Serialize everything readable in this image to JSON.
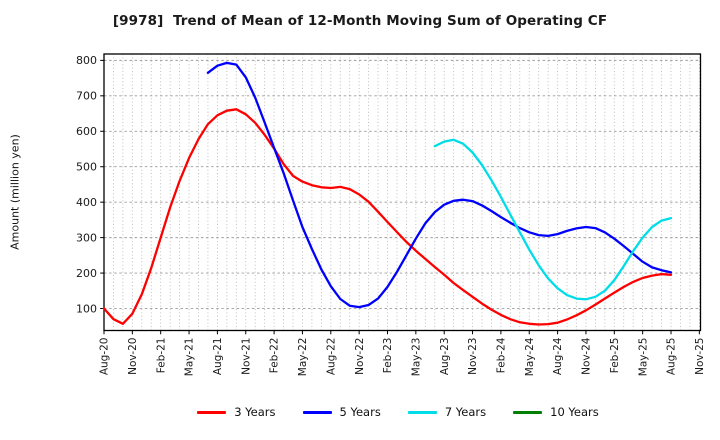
{
  "header": {
    "title": "[9978]  Trend of Mean of 12-Month Moving Sum of Operating CF"
  },
  "chart_data": {
    "type": "line",
    "title": "[9978]  Trend of Mean of 12-Month Moving Sum of Operating CF",
    "xlabel": "",
    "ylabel": "Amount (million yen)",
    "grid": true,
    "legend_position": "bottom",
    "ylim": [
      38,
      818
    ],
    "y_ticks": [
      100,
      200,
      300,
      400,
      500,
      600,
      700,
      800
    ],
    "x_tick_every": 3,
    "x_months": [
      "Aug-20",
      "Sep-20",
      "Oct-20",
      "Nov-20",
      "Dec-20",
      "Jan-21",
      "Feb-21",
      "Mar-21",
      "Apr-21",
      "May-21",
      "Jun-21",
      "Jul-21",
      "Aug-21",
      "Sep-21",
      "Oct-21",
      "Nov-21",
      "Dec-21",
      "Jan-22",
      "Feb-22",
      "Mar-22",
      "Apr-22",
      "May-22",
      "Jun-22",
      "Jul-22",
      "Aug-22",
      "Sep-22",
      "Oct-22",
      "Nov-22",
      "Dec-22",
      "Jan-23",
      "Feb-23",
      "Mar-23",
      "Apr-23",
      "May-23",
      "Jun-23",
      "Jul-23",
      "Aug-23",
      "Sep-23",
      "Oct-23",
      "Nov-23",
      "Dec-23",
      "Jan-24",
      "Feb-24",
      "Mar-24",
      "Apr-24",
      "May-24",
      "Jun-24",
      "Jul-24",
      "Aug-24",
      "Sep-24",
      "Oct-24",
      "Nov-24",
      "Dec-24",
      "Jan-25",
      "Feb-25",
      "Mar-25",
      "Apr-25",
      "May-25",
      "Jun-25",
      "Jul-25",
      "Aug-25",
      "Sep-25",
      "Oct-25",
      "Nov-25"
    ],
    "series": [
      {
        "name": "3 Years",
        "color": "#ff0000",
        "start_index": 0,
        "values": [
          100,
          70,
          57,
          85,
          140,
          215,
          300,
          385,
          460,
          525,
          578,
          620,
          645,
          658,
          662,
          648,
          624,
          590,
          551,
          508,
          474,
          458,
          448,
          442,
          440,
          443,
          437,
          422,
          401,
          373,
          344,
          316,
          288,
          263,
          240,
          217,
          195,
          172,
          152,
          133,
          114,
          97,
          82,
          70,
          61,
          57,
          55,
          56,
          60,
          69,
          81,
          95,
          111,
          128,
          145,
          161,
          175,
          186,
          193,
          197,
          195
        ]
      },
      {
        "name": "5 Years",
        "color": "#0000ff",
        "start_index": 11,
        "values": [
          765,
          785,
          793,
          788,
          752,
          695,
          625,
          553,
          483,
          405,
          330,
          268,
          210,
          163,
          127,
          108,
          104,
          110,
          128,
          161,
          203,
          250,
          297,
          340,
          372,
          393,
          404,
          407,
          403,
          391,
          375,
          358,
          342,
          327,
          315,
          307,
          305,
          310,
          319,
          326,
          330,
          327,
          315,
          297,
          276,
          254,
          232,
          216,
          208,
          202
        ]
      },
      {
        "name": "7 Years",
        "color": "#00dde8",
        "start_index": 35,
        "values": [
          558,
          571,
          576,
          565,
          540,
          505,
          462,
          415,
          365,
          315,
          266,
          222,
          185,
          157,
          138,
          128,
          126,
          133,
          150,
          180,
          220,
          262,
          300,
          330,
          348,
          355
        ]
      },
      {
        "name": "10 Years",
        "color": "#008000",
        "start_index": 0,
        "values": []
      }
    ]
  }
}
